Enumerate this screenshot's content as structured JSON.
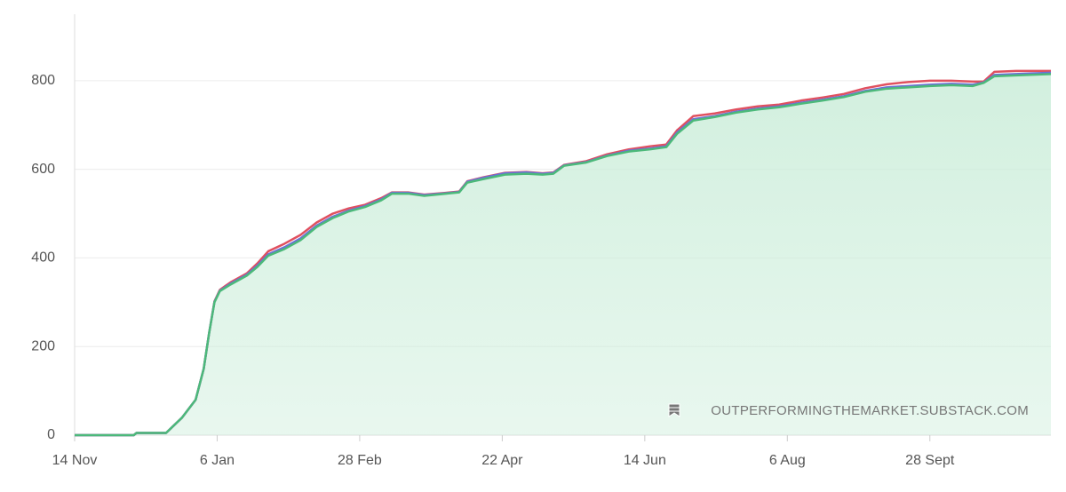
{
  "chart_data": {
    "type": "line",
    "x": [
      0,
      22,
      23,
      34,
      40,
      45,
      48,
      50,
      52,
      54,
      58,
      64,
      68,
      72,
      78,
      84,
      90,
      96,
      102,
      108,
      114,
      118,
      124,
      130,
      138,
      143,
      146,
      152,
      160,
      168,
      174,
      178,
      182,
      190,
      198,
      206,
      214,
      220,
      224,
      230,
      238,
      246,
      254,
      262,
      270,
      278,
      286,
      294,
      302,
      310,
      318,
      326,
      334,
      338,
      342,
      350,
      363
    ],
    "xlim": [
      0,
      363
    ],
    "xticks": [
      {
        "value": 0,
        "label": "14 Nov"
      },
      {
        "value": 53,
        "label": "6 Jan"
      },
      {
        "value": 106,
        "label": "28 Feb"
      },
      {
        "value": 159,
        "label": "22 Apr"
      },
      {
        "value": 212,
        "label": "14 Jun"
      },
      {
        "value": 265,
        "label": "6 Aug"
      },
      {
        "value": 318,
        "label": "28 Sept"
      }
    ],
    "ylim": [
      0,
      950
    ],
    "yticks": [
      0,
      200,
      400,
      600,
      800
    ],
    "grid": true,
    "fill_color": "#cdeedb",
    "series": [
      {
        "color": "#e0505f",
        "values": [
          0,
          0,
          5,
          5,
          40,
          80,
          150,
          230,
          302,
          328,
          345,
          365,
          388,
          415,
          432,
          452,
          480,
          500,
          512,
          520,
          535,
          548,
          548,
          543,
          547,
          550,
          573,
          582,
          592,
          594,
          591,
          593,
          610,
          618,
          634,
          645,
          652,
          656,
          688,
          720,
          726,
          735,
          742,
          746,
          755,
          762,
          770,
          783,
          792,
          797,
          800,
          800,
          798,
          798,
          820,
          822,
          822
        ]
      },
      {
        "color": "#6c6fd8",
        "values": [
          0,
          0,
          5,
          5,
          40,
          80,
          150,
          230,
          301,
          326,
          342,
          362,
          383,
          408,
          424,
          444,
          473,
          493,
          507,
          517,
          532,
          547,
          547,
          542,
          546,
          549,
          572,
          581,
          591,
          593,
          590,
          592,
          609,
          616,
          631,
          642,
          647,
          652,
          683,
          713,
          720,
          730,
          737,
          742,
          750,
          757,
          765,
          777,
          785,
          788,
          791,
          793,
          791,
          796,
          813,
          815,
          818
        ]
      },
      {
        "color": "#4cb97a",
        "values": [
          0,
          0,
          5,
          5,
          40,
          80,
          150,
          230,
          300,
          325,
          340,
          360,
          380,
          405,
          420,
          440,
          470,
          490,
          505,
          515,
          530,
          545,
          545,
          540,
          545,
          548,
          570,
          578,
          588,
          590,
          588,
          590,
          608,
          615,
          630,
          640,
          645,
          650,
          680,
          710,
          718,
          728,
          735,
          740,
          748,
          755,
          763,
          775,
          782,
          785,
          788,
          790,
          788,
          795,
          810,
          812,
          815
        ]
      }
    ],
    "watermark": "OUTPERFORMINGTHEMARKET.SUBSTACK.COM"
  }
}
